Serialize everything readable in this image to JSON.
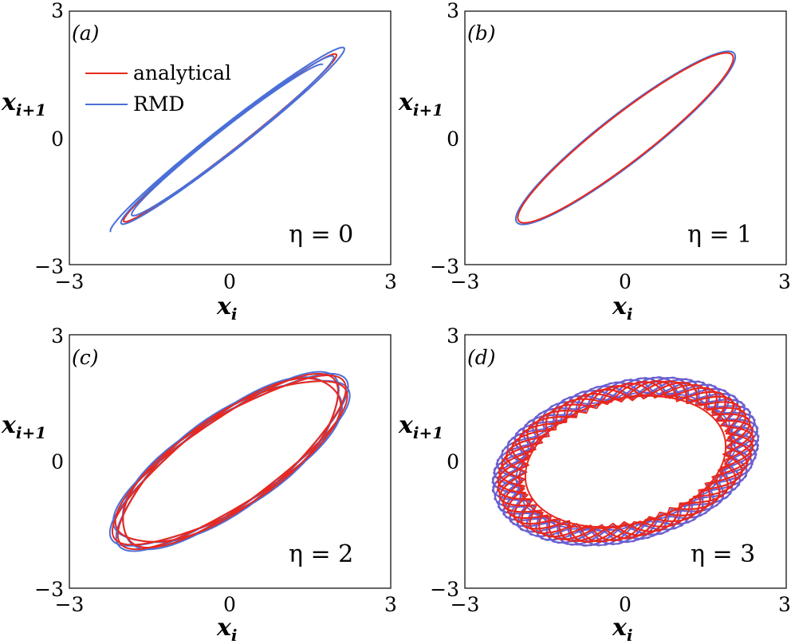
{
  "chart_data": [
    {
      "type": "line",
      "panel": "(a)",
      "annotation": "η = 0",
      "eta": 0,
      "xlabel": "x_i",
      "ylabel": "x_{i+1}",
      "xlim": [
        -3,
        3
      ],
      "ylim": [
        -3,
        3
      ],
      "xticks": [
        "−3",
        "0",
        "3"
      ],
      "yticks": [
        "3",
        "0",
        "−3"
      ],
      "legend": {
        "placement": "top-left",
        "entries": [
          {
            "name": "analytical",
            "color": "#e8281e"
          },
          {
            "name": "RMD",
            "color": "#4a6fd8"
          }
        ]
      },
      "series": [
        {
          "name": "analytical",
          "color": "#e8281e",
          "shape": {
            "kind": "ellipse",
            "cx": 0,
            "cy": 0,
            "a": 2.8,
            "b": 0.24,
            "angle_deg": 45,
            "turns": 1,
            "spread": 0
          }
        },
        {
          "name": "RMD",
          "color": "#4a6fd8",
          "shape": {
            "kind": "spiral",
            "cx": 0,
            "cy": 0,
            "a": 2.8,
            "b": 0.26,
            "angle_deg": 45,
            "turns": 2.5,
            "growth": 0.25
          }
        }
      ]
    },
    {
      "type": "line",
      "panel": "(b)",
      "annotation": "η = 1",
      "eta": 1,
      "xlabel": "x_i",
      "ylabel": "x_{i+1}",
      "xlim": [
        -3,
        3
      ],
      "ylim": [
        -3,
        3
      ],
      "xticks": [
        "−3",
        "0",
        "3"
      ],
      "yticks": [
        "3",
        "0",
        "−3"
      ],
      "series": [
        {
          "name": "RMD",
          "color": "#4a6fd8",
          "shape": {
            "kind": "ellipse",
            "cx": 0,
            "cy": 0,
            "a": 2.85,
            "b": 0.52,
            "angle_deg": 45,
            "turns": 1,
            "spread": 0.04
          }
        },
        {
          "name": "analytical",
          "color": "#e8281e",
          "shape": {
            "kind": "ellipse",
            "cx": 0,
            "cy": 0,
            "a": 2.8,
            "b": 0.5,
            "angle_deg": 45,
            "turns": 1,
            "spread": 0
          }
        }
      ]
    },
    {
      "type": "line",
      "panel": "(c)",
      "annotation": "η = 2",
      "eta": 2,
      "xlabel": "x_i",
      "ylabel": "x_{i+1}",
      "xlim": [
        -3,
        3
      ],
      "ylim": [
        -3,
        3
      ],
      "xticks": [
        "−3",
        "0",
        "3"
      ],
      "yticks": [
        "3",
        "0",
        "−3"
      ],
      "series": [
        {
          "name": "RMD",
          "color": "#4a6fd8",
          "shape": {
            "kind": "wobbly",
            "cx": 0,
            "cy": 0,
            "a": 2.75,
            "b": 0.98,
            "angle_deg": 43,
            "wobble": 0.06,
            "turns": 4
          }
        },
        {
          "name": "analytical",
          "color": "#e8281e",
          "shape": {
            "kind": "wobbly",
            "cx": 0,
            "cy": 0,
            "a": 2.72,
            "b": 0.96,
            "angle_deg": 43,
            "wobble": 0.05,
            "turns": 4
          }
        }
      ]
    },
    {
      "type": "line",
      "panel": "(d)",
      "annotation": "η = 3",
      "eta": 3,
      "xlabel": "x_i",
      "ylabel": "x_{i+1}",
      "xlim": [
        -3,
        3
      ],
      "ylim": [
        -3,
        3
      ],
      "xticks": [
        "−3",
        "0",
        "3"
      ],
      "yticks": [
        "3",
        "0",
        "−3"
      ],
      "series": [
        {
          "name": "RMD",
          "color": "#6b5fd0",
          "shape": {
            "kind": "star",
            "cx": 0,
            "cy": 0,
            "a": 2.2,
            "b": 1.55,
            "angle_deg": 25,
            "jag": 0.32,
            "turns": 14
          }
        },
        {
          "name": "analytical",
          "color": "#e8281e",
          "shape": {
            "kind": "star",
            "cx": 0,
            "cy": 0,
            "a": 2.15,
            "b": 1.5,
            "angle_deg": 25,
            "jag": 0.3,
            "turns": 14
          }
        },
        {
          "name": "analytical-core",
          "color": "#e8281e",
          "shape": {
            "kind": "ellipse",
            "cx": 0,
            "cy": 0,
            "a": 1.95,
            "b": 1.45,
            "angle_deg": 25,
            "turns": 1,
            "spread": 0.12
          }
        }
      ]
    }
  ]
}
